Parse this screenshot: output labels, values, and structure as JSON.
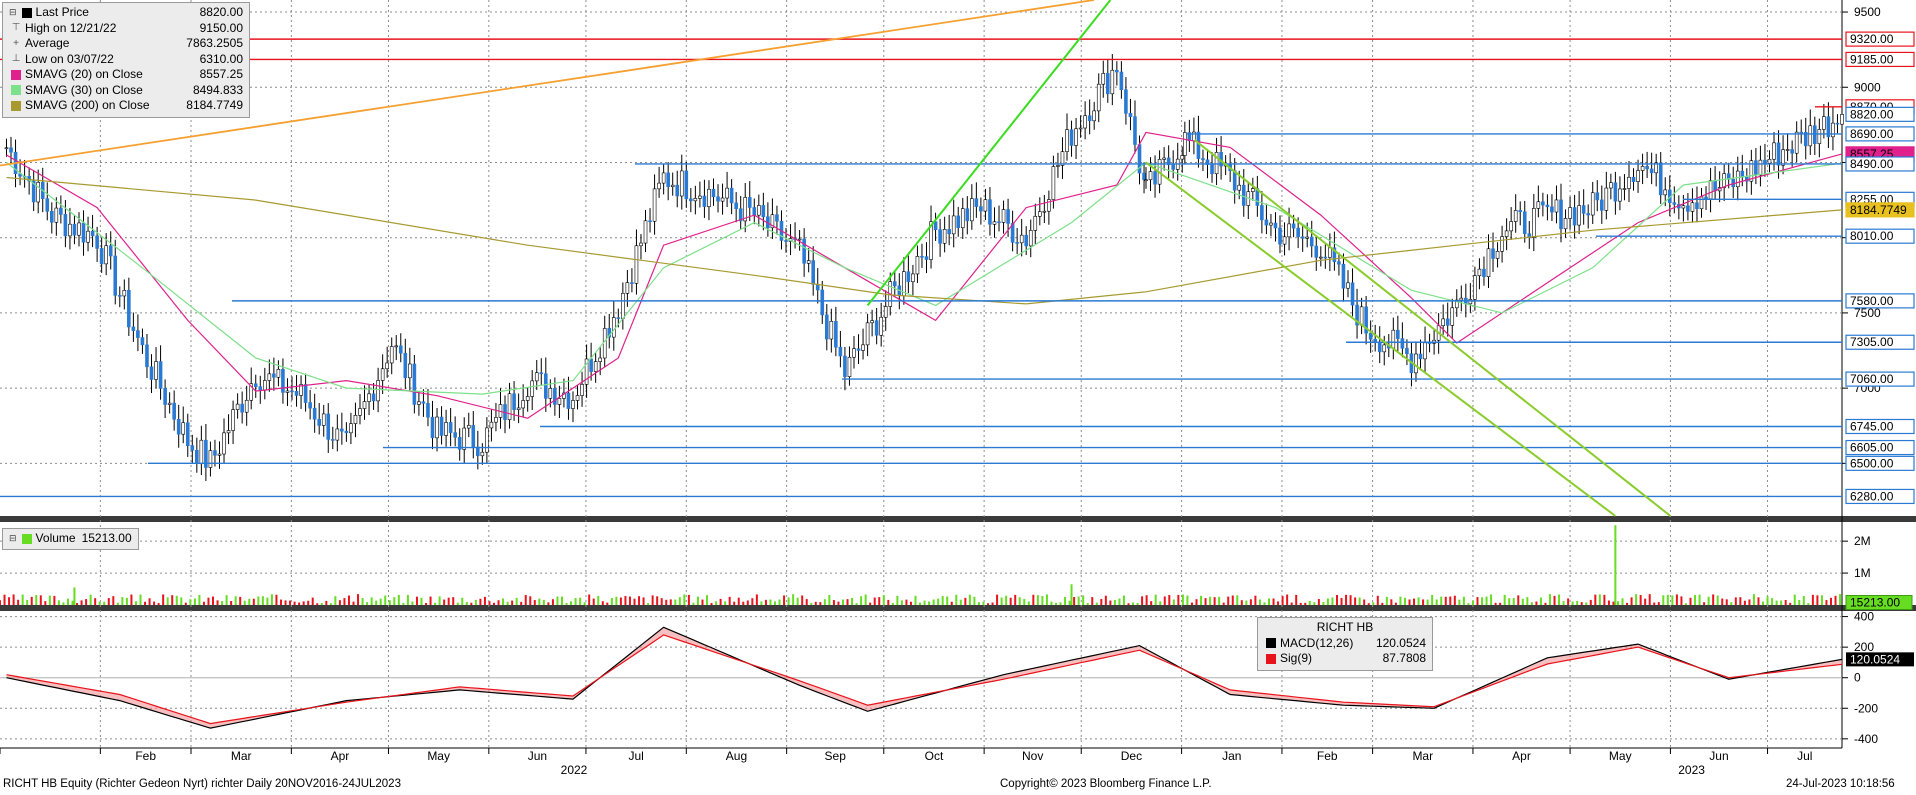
{
  "chart_data": [
    {
      "type": "line",
      "panel": "price",
      "title": "RICHT HB Equity (Richter Gedeon Nyrt) richter  Daily 20NOV2016-24JUL2023",
      "x_range": [
        "2022-01-01",
        "2023-07-24"
      ],
      "ylim": [
        6150,
        9580
      ],
      "y_ticks": [
        9500,
        9000,
        8500,
        8000,
        7500,
        7000,
        6500
      ],
      "x_month_labels": [
        "Feb",
        "Mar",
        "Apr",
        "May",
        "Jun",
        "Jul",
        "Aug",
        "Sep",
        "Oct",
        "Nov",
        "Dec",
        "Jan",
        "Feb",
        "Mar",
        "Apr",
        "May",
        "Jun",
        "Jul"
      ],
      "x_year_labels": [
        "2022",
        "2023"
      ],
      "grid": true,
      "legend_position": "top-left",
      "legend": [
        {
          "label": "Last Price",
          "value": "8820.00"
        },
        {
          "label": "High on 12/21/22",
          "value": "9150.00"
        },
        {
          "label": "Average",
          "value": "7863.2505"
        },
        {
          "label": "Low on 03/07/22",
          "value": "6310.00"
        },
        {
          "label": "SMAVG (20)  on Close",
          "value": "8557.25",
          "color": "#e0208c"
        },
        {
          "label": "SMAVG (30)  on Close",
          "value": "8494.833",
          "color": "#7de08a"
        },
        {
          "label": "SMAVG (200)  on Close",
          "value": "8184.7749",
          "color": "#a89a30"
        }
      ],
      "series": [
        {
          "name": "Last Price",
          "style": "candlestick",
          "x": [
            "2022-01-03",
            "2022-01-17",
            "2022-01-31",
            "2022-02-14",
            "2022-02-28",
            "2022-03-07",
            "2022-03-21",
            "2022-04-04",
            "2022-04-18",
            "2022-05-02",
            "2022-05-16",
            "2022-05-30",
            "2022-06-13",
            "2022-06-27",
            "2022-07-11",
            "2022-07-25",
            "2022-08-08",
            "2022-08-22",
            "2022-09-05",
            "2022-09-19",
            "2022-10-03",
            "2022-10-17",
            "2022-10-31",
            "2022-11-14",
            "2022-11-28",
            "2022-12-12",
            "2022-12-21",
            "2023-01-02",
            "2023-01-16",
            "2023-01-30",
            "2023-02-13",
            "2023-02-27",
            "2023-03-13",
            "2023-03-27",
            "2023-04-10",
            "2023-04-24",
            "2023-05-08",
            "2023-05-22",
            "2023-06-05",
            "2023-06-19",
            "2023-07-03",
            "2023-07-24"
          ],
          "values": [
            8600,
            8150,
            8000,
            7250,
            6650,
            6500,
            7100,
            6950,
            6600,
            7300,
            6700,
            6650,
            7050,
            6950,
            7550,
            8400,
            8300,
            8150,
            7900,
            7100,
            7600,
            8050,
            8200,
            8000,
            8700,
            9150,
            8300,
            8650,
            8400,
            8050,
            7950,
            7400,
            7200,
            7550,
            8050,
            8150,
            8200,
            8500,
            8250,
            8350,
            8550,
            8820
          ]
        },
        {
          "name": "SMAVG (20)  on Close",
          "x": [
            "2022-01-03",
            "2022-01-31",
            "2022-02-28",
            "2022-03-21",
            "2022-04-18",
            "2022-05-16",
            "2022-06-13",
            "2022-07-11",
            "2022-07-25",
            "2022-08-22",
            "2022-09-19",
            "2022-10-17",
            "2022-11-14",
            "2022-12-12",
            "2022-12-21",
            "2023-01-16",
            "2023-02-13",
            "2023-03-13",
            "2023-03-27",
            "2023-04-24",
            "2023-05-22",
            "2023-06-19",
            "2023-07-24"
          ],
          "values": [
            8550,
            8200,
            7450,
            6980,
            7050,
            6950,
            6800,
            7200,
            7950,
            8150,
            7800,
            7450,
            8200,
            8350,
            8700,
            8600,
            8150,
            7600,
            7300,
            7700,
            8100,
            8350,
            8557.25
          ]
        },
        {
          "name": "SMAVG (30)  on Close",
          "x": [
            "2022-01-03",
            "2022-02-14",
            "2022-03-21",
            "2022-04-18",
            "2022-05-30",
            "2022-06-27",
            "2022-07-25",
            "2022-08-22",
            "2022-09-19",
            "2022-10-17",
            "2022-11-28",
            "2022-12-21",
            "2023-01-30",
            "2023-03-13",
            "2023-04-10",
            "2023-05-08",
            "2023-06-05",
            "2023-07-24"
          ],
          "values": [
            8500,
            7800,
            7200,
            7000,
            6960,
            7050,
            7800,
            8100,
            7800,
            7550,
            8100,
            8500,
            8200,
            7650,
            7500,
            7800,
            8350,
            8494.833
          ]
        },
        {
          "name": "SMAVG (200)  on Close",
          "x": [
            "2022-01-03",
            "2022-03-21",
            "2022-06-13",
            "2022-08-22",
            "2022-10-03",
            "2022-11-14",
            "2022-12-21",
            "2023-02-13",
            "2023-03-27",
            "2023-05-08",
            "2023-07-24"
          ],
          "values": [
            8400,
            8250,
            7950,
            7750,
            7620,
            7560,
            7640,
            7850,
            7950,
            8050,
            8184.7749
          ]
        }
      ],
      "horizontal_levels": [
        9320,
        9185,
        8870,
        8690,
        8490,
        8255,
        8010,
        7580,
        7305,
        7060,
        6745,
        6605,
        6500,
        6280
      ],
      "axis_tags": [
        {
          "label": "9320.00",
          "color": "#e8141b"
        },
        {
          "label": "9185.00",
          "color": "#e8141b"
        },
        {
          "label": "8870.00",
          "color": "#e8141b"
        },
        {
          "label": "8820.00",
          "color": "#2a7ad4"
        },
        {
          "label": "8690.00",
          "color": "#2a7ad4"
        },
        {
          "label": "8557.25",
          "color": "#e0208c"
        },
        {
          "label": "8490.00",
          "color": "#2a7ad4"
        },
        {
          "label": "8255.00",
          "color": "#2a7ad4"
        },
        {
          "label": "8184.7749",
          "color": "#e8c020"
        },
        {
          "label": "8010.00",
          "color": "#2a7ad4"
        },
        {
          "label": "7580.00",
          "color": "#2a7ad4"
        },
        {
          "label": "7305.00",
          "color": "#2a7ad4"
        },
        {
          "label": "7060.00",
          "color": "#2a7ad4"
        },
        {
          "label": "6745.00",
          "color": "#2a7ad4"
        },
        {
          "label": "6605.00",
          "color": "#2a7ad4"
        },
        {
          "label": "6500.00",
          "color": "#2a7ad4"
        },
        {
          "label": "6280.00",
          "color": "#2a7ad4"
        }
      ],
      "colors": {
        "candle": "#2a7ad4",
        "resistance": "#e8141b",
        "support": "#2a7ad4",
        "trend_orange": "#f5a030",
        "trend_green": "#3adc20",
        "trend_olive": "#8acc2c"
      }
    },
    {
      "type": "bar",
      "panel": "volume",
      "ylim": [
        0,
        2600000
      ],
      "y_ticks": [
        "2M",
        "1M"
      ],
      "legend": [
        {
          "label": "Volume",
          "value": "15213.00",
          "color": "#66dd22"
        }
      ],
      "last_value_tag": "15213.00",
      "spikes": [
        {
          "x": "2022-01-24",
          "value": 550000
        },
        {
          "x": "2022-11-28",
          "value": 650000
        },
        {
          "x": "2023-05-15",
          "value": 2500000
        }
      ],
      "typical_value": 180000,
      "colors": {
        "up": "#66dd22",
        "down": "#e8141b"
      }
    },
    {
      "type": "area",
      "panel": "macd",
      "ylim": [
        -460,
        430
      ],
      "y_ticks": [
        400,
        200,
        0,
        -200,
        -400
      ],
      "legend_title": "RICHT HB",
      "legend": [
        {
          "label": "MACD(12,26)",
          "value": "120.0524",
          "color": "#000000"
        },
        {
          "label": "Sig(9)",
          "value": "87.7808",
          "color": "#e8141b"
        }
      ],
      "last_value_tag": "120.0524",
      "series": [
        {
          "name": "MACD(12,26)",
          "x": [
            "2022-01-03",
            "2022-02-07",
            "2022-03-07",
            "2022-04-18",
            "2022-05-23",
            "2022-06-27",
            "2022-07-25",
            "2022-09-05",
            "2022-09-26",
            "2022-11-07",
            "2022-12-19",
            "2023-01-16",
            "2023-02-20",
            "2023-03-20",
            "2023-04-24",
            "2023-05-22",
            "2023-06-19",
            "2023-07-24"
          ],
          "values": [
            0,
            -150,
            -330,
            -150,
            -80,
            -140,
            330,
            -50,
            -220,
            20,
            210,
            -110,
            -180,
            -200,
            130,
            220,
            -10,
            120.0524
          ]
        },
        {
          "name": "Sig(9)",
          "x": [
            "2022-01-03",
            "2022-02-07",
            "2022-03-07",
            "2022-04-18",
            "2022-05-23",
            "2022-06-27",
            "2022-07-25",
            "2022-09-05",
            "2022-09-26",
            "2022-11-07",
            "2022-12-19",
            "2023-01-16",
            "2023-02-20",
            "2023-03-20",
            "2023-04-24",
            "2023-05-22",
            "2023-06-19",
            "2023-07-24"
          ],
          "values": [
            20,
            -110,
            -300,
            -160,
            -60,
            -120,
            280,
            -20,
            -180,
            -10,
            180,
            -80,
            -160,
            -190,
            90,
            200,
            0,
            87.7808
          ]
        }
      ]
    }
  ],
  "footer": {
    "left": "RICHT HB Equity (Richter Gedeon Nyrt) richter  Daily 20NOV2016-24JUL2023",
    "center": "Copyright© 2023 Bloomberg Finance L.P.",
    "right": "24-Jul-2023 10:18:56"
  }
}
